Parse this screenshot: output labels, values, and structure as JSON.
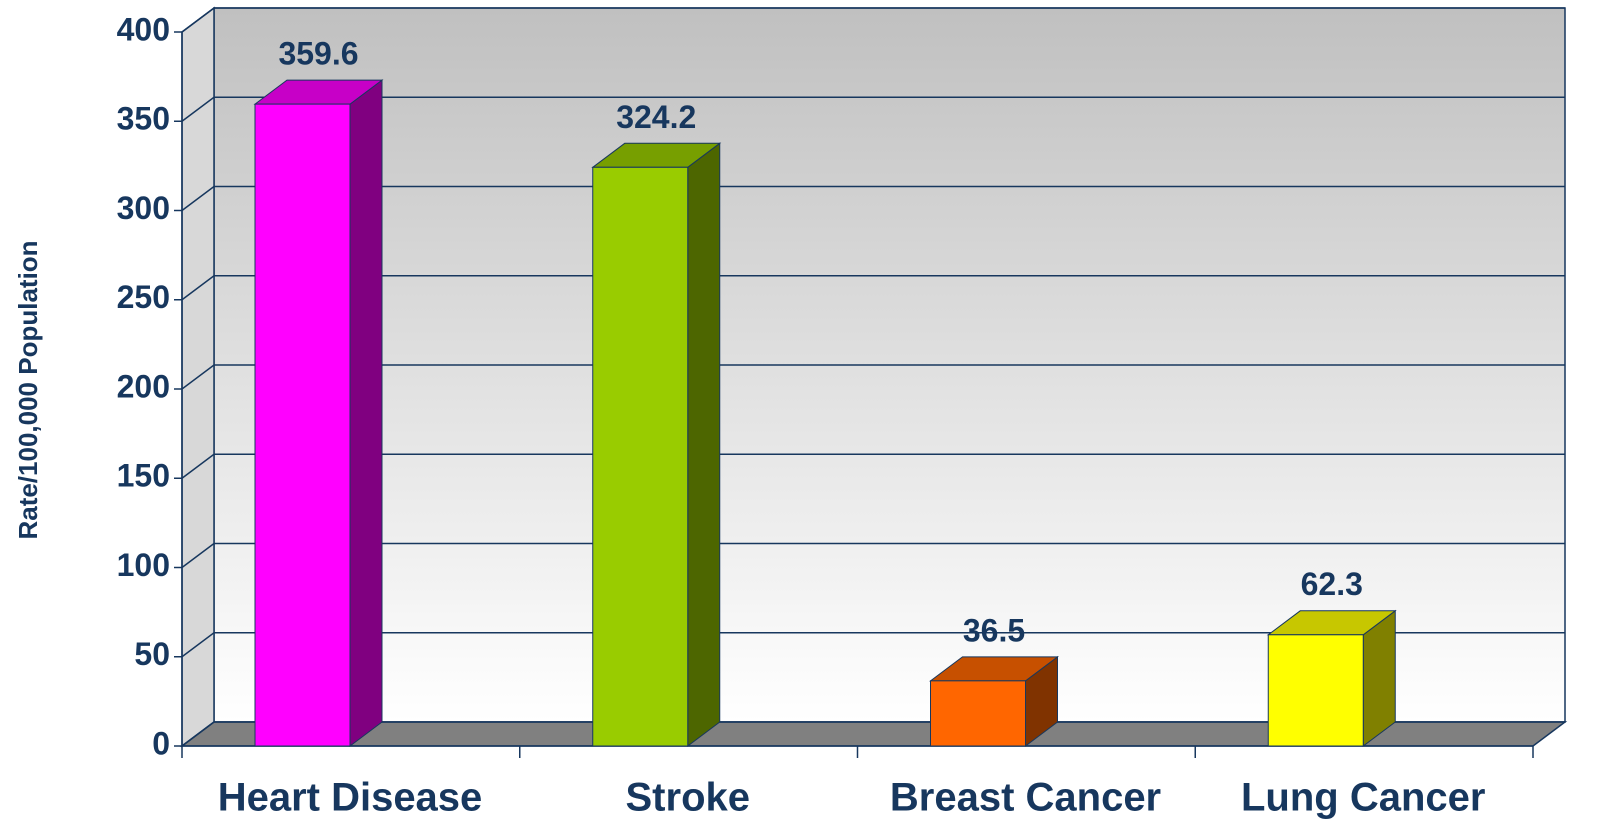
{
  "chart_data": {
    "type": "bar",
    "y_label": "Rate/100,000 Population",
    "categories": [
      "Heart Disease",
      "Stroke",
      "Breast Cancer",
      "Lung Cancer"
    ],
    "values": [
      359.6,
      324.2,
      36.5,
      62.3
    ],
    "colors": [
      "#ff00ff",
      "#99cc00",
      "#ff6600",
      "#ffff00"
    ],
    "ylim": [
      0,
      400
    ],
    "yticks": [
      0,
      50,
      100,
      150,
      200,
      250,
      300,
      350,
      400
    ],
    "grid": true
  }
}
